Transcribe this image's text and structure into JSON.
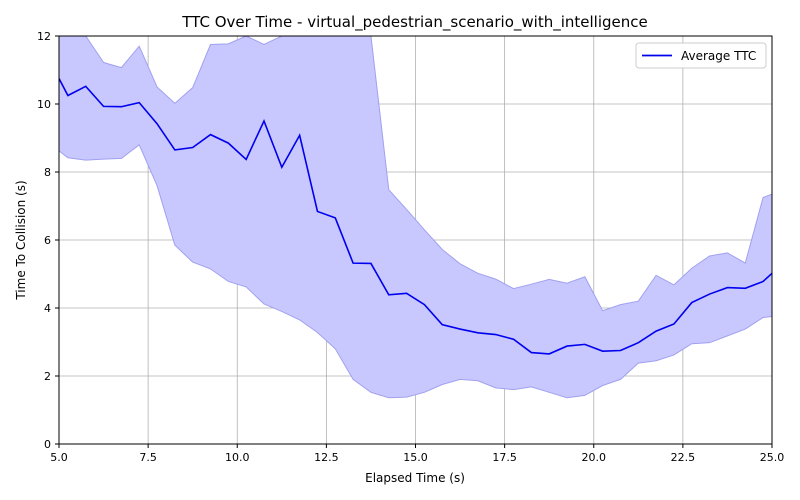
{
  "chart_data": {
    "type": "line",
    "title": "TTC Over Time - virtual_pedestrian_scenario_with_intelligence",
    "xlabel": "Elapsed Time (s)",
    "ylabel": "Time To Collision (s)",
    "xlim": [
      5.0,
      25.0
    ],
    "ylim": [
      0,
      12
    ],
    "xticks": [
      5.0,
      7.5,
      10.0,
      12.5,
      15.0,
      17.5,
      20.0,
      22.5,
      25.0
    ],
    "xtick_labels": [
      "5.0",
      "7.5",
      "10.0",
      "12.5",
      "15.0",
      "17.5",
      "20.0",
      "22.5",
      "25.0"
    ],
    "yticks": [
      0,
      2,
      4,
      6,
      8,
      10,
      12
    ],
    "ytick_labels": [
      "0",
      "2",
      "4",
      "6",
      "8",
      "10",
      "12"
    ],
    "grid": true,
    "legend_position": "top-right",
    "colors": {
      "line": "#0000ee",
      "band": "#c8c8ff",
      "band_edge": "#a0a0f0",
      "grid": "#b0b0b0"
    },
    "series": [
      {
        "name": "Average TTC",
        "x": [
          5.0,
          5.25,
          5.75,
          6.25,
          6.75,
          7.25,
          7.75,
          8.25,
          8.75,
          9.25,
          9.75,
          10.25,
          10.75,
          11.25,
          11.75,
          12.25,
          12.75,
          13.25,
          13.75,
          14.25,
          14.75,
          15.25,
          15.75,
          16.25,
          16.75,
          17.25,
          17.75,
          18.25,
          18.75,
          19.25,
          19.75,
          20.25,
          20.75,
          21.25,
          21.75,
          22.25,
          22.75,
          23.25,
          23.75,
          24.25,
          24.75,
          25.0
        ],
        "y": [
          10.75,
          10.25,
          10.52,
          9.93,
          9.92,
          10.04,
          9.42,
          8.65,
          8.72,
          9.1,
          8.85,
          8.37,
          9.5,
          8.14,
          9.08,
          6.84,
          6.65,
          5.32,
          5.31,
          4.39,
          4.43,
          4.1,
          3.51,
          3.38,
          3.27,
          3.22,
          3.08,
          2.69,
          2.65,
          2.88,
          2.93,
          2.73,
          2.75,
          2.98,
          3.32,
          3.53,
          4.16,
          4.41,
          4.6,
          4.58,
          4.78,
          5.02
        ],
        "lower": [
          8.62,
          8.42,
          8.35,
          8.38,
          8.4,
          8.8,
          7.6,
          5.85,
          5.35,
          5.15,
          4.78,
          4.62,
          4.12,
          3.9,
          3.65,
          3.28,
          2.8,
          1.9,
          1.52,
          1.36,
          1.38,
          1.52,
          1.75,
          1.9,
          1.86,
          1.65,
          1.6,
          1.68,
          1.52,
          1.36,
          1.43,
          1.72,
          1.9,
          2.38,
          2.45,
          2.62,
          2.95,
          2.98,
          3.18,
          3.38,
          3.72,
          3.75
        ],
        "upper": [
          12.0,
          12.0,
          12.0,
          11.22,
          11.07,
          11.7,
          10.5,
          10.02,
          10.48,
          11.75,
          11.77,
          12.0,
          11.75,
          12.0,
          12.0,
          12.0,
          12.0,
          12.0,
          12.0,
          7.48,
          6.9,
          6.3,
          5.72,
          5.3,
          5.02,
          4.85,
          4.57,
          4.7,
          4.84,
          4.73,
          4.92,
          3.92,
          4.1,
          4.2,
          4.96,
          4.68,
          5.17,
          5.53,
          5.62,
          5.32,
          7.25,
          7.35
        ]
      }
    ]
  }
}
